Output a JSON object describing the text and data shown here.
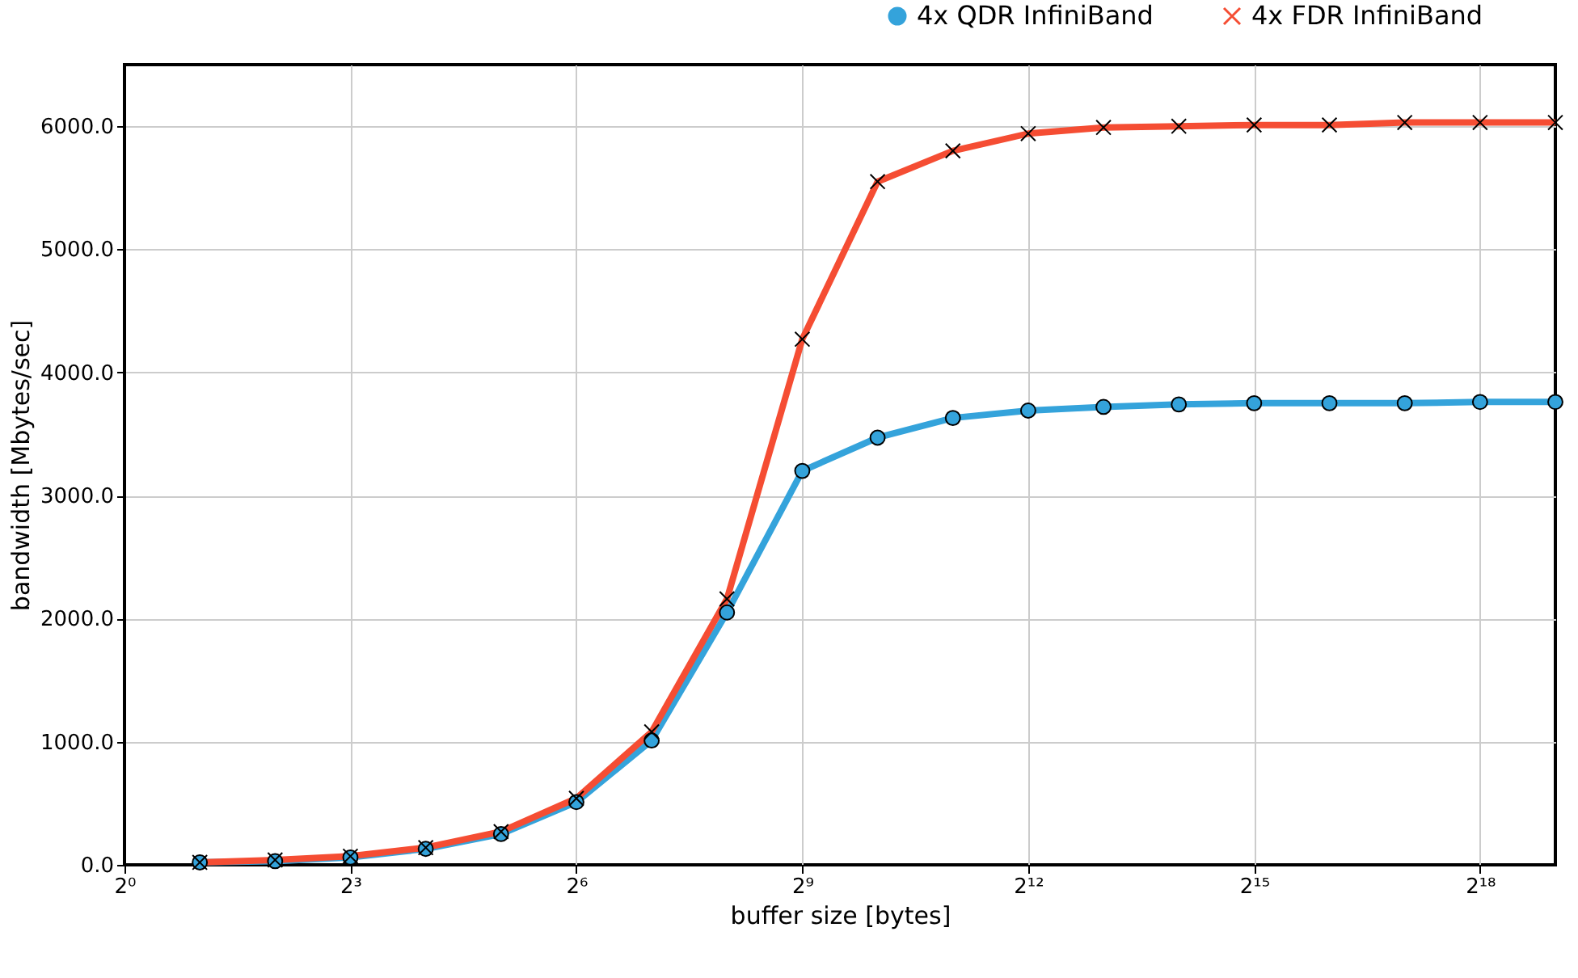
{
  "chart_data": {
    "type": "line",
    "xlabel": "buffer size [bytes]",
    "ylabel": "bandwidth [Mbytes/sec]",
    "x": [
      2,
      4,
      8,
      16,
      32,
      64,
      128,
      256,
      512,
      1024,
      2048,
      4096,
      8192,
      16384,
      32768,
      65536,
      131072,
      262144,
      524288
    ],
    "series": [
      {
        "name": "4x QDR InfiniBand",
        "color": "#34a3db",
        "marker": "circle",
        "values": [
          20,
          30,
          60,
          130,
          250,
          510,
          1010,
          2050,
          3200,
          3470,
          3630,
          3690,
          3720,
          3740,
          3750,
          3750,
          3750,
          3760,
          3760
        ]
      },
      {
        "name": "4x FDR InfiniBand",
        "color": "#f54d33",
        "marker": "cross",
        "values": [
          20,
          40,
          70,
          140,
          270,
          540,
          1080,
          2160,
          4270,
          5550,
          5800,
          5940,
          5990,
          6000,
          6010,
          6010,
          6030,
          6030,
          6030
        ]
      }
    ],
    "log": "x",
    "xlim": [
      1,
      524288
    ],
    "xticks": [
      {
        "value": 1,
        "label": "2⁰"
      },
      {
        "value": 8,
        "label": "2³"
      },
      {
        "value": 64,
        "label": "2⁶"
      },
      {
        "value": 512,
        "label": "2⁹"
      },
      {
        "value": 4096,
        "label": "2¹²"
      },
      {
        "value": 32768,
        "label": "2¹⁵"
      },
      {
        "value": 262144,
        "label": "2¹⁸"
      }
    ],
    "ylim": [
      0,
      6500
    ],
    "yticks": [
      {
        "value": 0,
        "label": "0.0"
      },
      {
        "value": 1000,
        "label": "1000.0"
      },
      {
        "value": 2000,
        "label": "2000.0"
      },
      {
        "value": 3000,
        "label": "3000.0"
      },
      {
        "value": 4000,
        "label": "4000.0"
      },
      {
        "value": 5000,
        "label": "5000.0"
      },
      {
        "value": 6000,
        "label": "6000.0"
      }
    ],
    "grid": true,
    "legend": "top right",
    "line_style": "solid"
  }
}
